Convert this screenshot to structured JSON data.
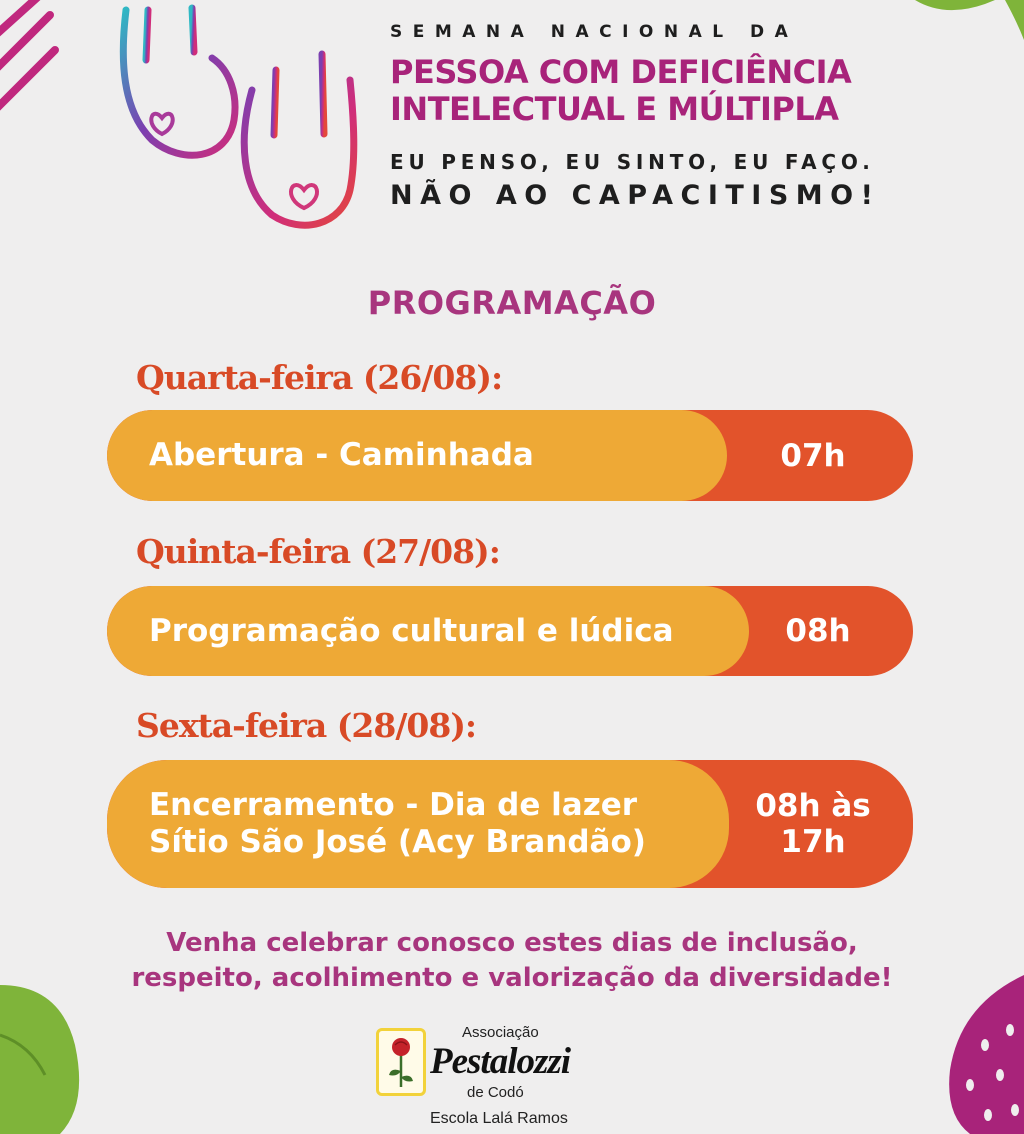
{
  "header": {
    "eyebrow": "SEMANA NACIONAL DA",
    "title_line1": "PESSOA COM DEFICIÊNCIA",
    "title_line2": "INTELECTUAL E MÚLTIPLA",
    "slogan_line1": "EU PENSO, EU SINTO, EU FAÇO.",
    "slogan_line2": "NÃO AO CAPACITISMO!"
  },
  "program": {
    "title": "PROGRAMAÇÃO",
    "days": [
      {
        "day": "Quarta-feira (26/08):",
        "event": "Abertura - Caminhada",
        "time": "07h"
      },
      {
        "day": "Quinta-feira (27/08):",
        "event": "Programação cultural e lúdica",
        "time": "08h"
      },
      {
        "day": "Sexta-feira (28/08):",
        "event_line1": "Encerramento - Dia de lazer",
        "event_line2": "Sítio São José (Acy Brandão)",
        "time_line1": "08h às",
        "time_line2": "17h"
      }
    ]
  },
  "footer": {
    "line1": "Venha celebrar conosco estes dias de inclusão,",
    "line2": "respeito, acolhimento e valorização da diversidade!"
  },
  "logo": {
    "assoc": "Associação",
    "name": "Pestalozzi",
    "city": "de Codó",
    "school": "Escola Lalá Ramos",
    "icon": "rose-icon"
  },
  "colors": {
    "background": "#efeeee",
    "title_magenta": "#a8237a",
    "program_purple": "#a8357e",
    "day_red": "#d84a26",
    "pill_orange": "#eea936",
    "pill_red": "#e2532b",
    "text_dark": "#1e1e1e"
  }
}
